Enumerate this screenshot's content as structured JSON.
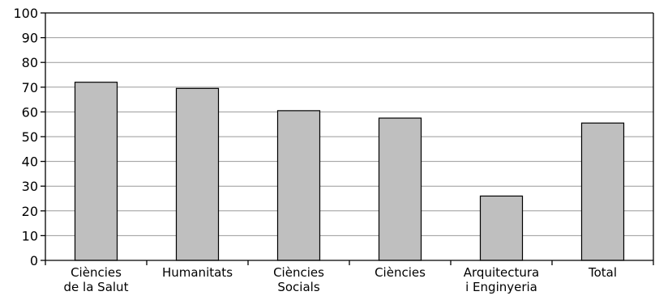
{
  "chart_data": {
    "type": "bar",
    "categories": [
      [
        "Ciències",
        "de la Salut"
      ],
      [
        "Humanitats"
      ],
      [
        "Ciències",
        "Socials"
      ],
      [
        "Ciències"
      ],
      [
        "Arquitectura",
        "i Enginyeria"
      ],
      [
        "Total"
      ]
    ],
    "values": [
      72,
      69.5,
      60.5,
      57.5,
      26,
      55.5
    ],
    "ylim": [
      0,
      100
    ],
    "yticks": [
      0,
      10,
      20,
      30,
      40,
      50,
      60,
      70,
      80,
      90,
      100
    ],
    "grid": true,
    "legend": "none",
    "colors": {
      "bar_fill": "#bfbfbf",
      "bar_stroke": "#000000",
      "grid": "#999999",
      "axis": "#000000"
    }
  }
}
